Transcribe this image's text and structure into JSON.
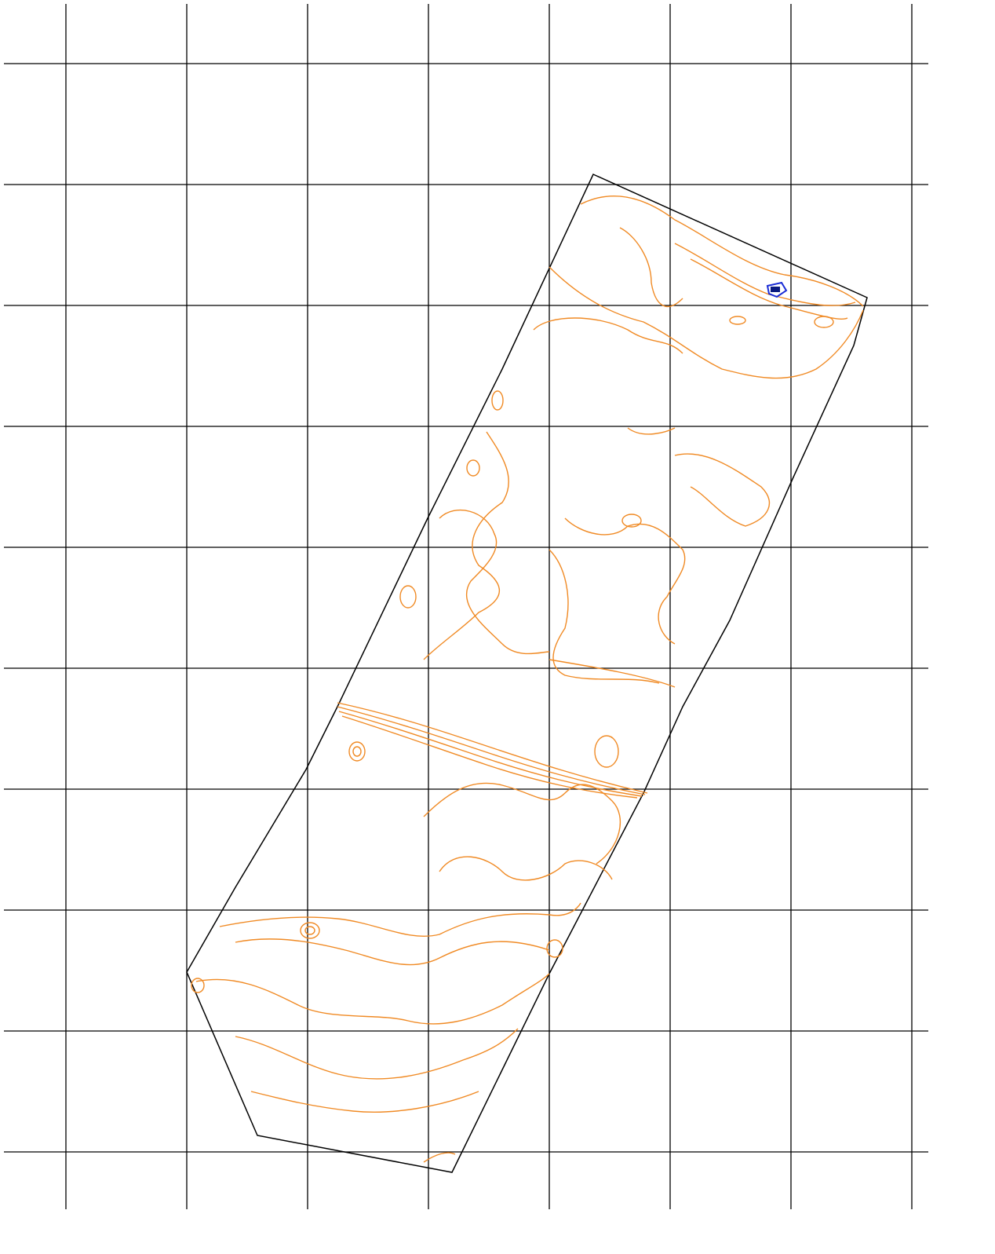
{
  "map": {
    "grid": true
  }
}
